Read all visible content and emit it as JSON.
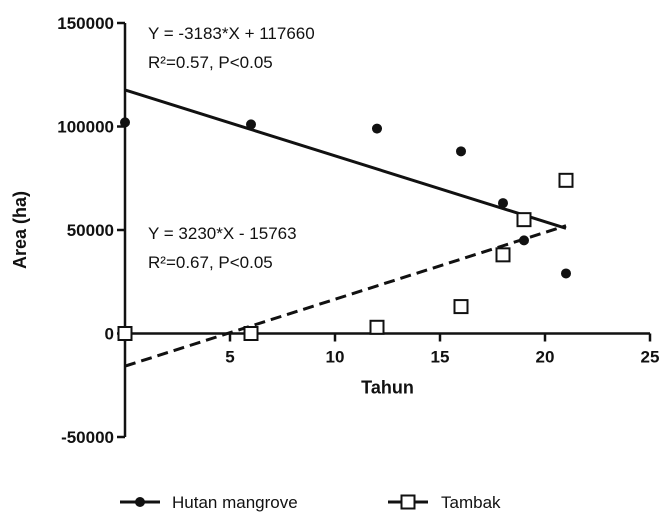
{
  "chart_data": {
    "type": "scatter",
    "xlabel": "Tahun",
    "ylabel": "Area (ha)",
    "xlim": [
      0,
      25
    ],
    "ylim": [
      -50000,
      150000
    ],
    "x_ticks": [
      0,
      5,
      10,
      15,
      20,
      25
    ],
    "x_tick_labels": [
      "0",
      "5",
      "10",
      "15",
      "20",
      "25"
    ],
    "y_ticks": [
      -50000,
      0,
      50000,
      100000,
      150000
    ],
    "y_tick_labels": [
      "-50000",
      "0",
      "50000",
      "100000",
      "150000"
    ],
    "grid": false,
    "legend_position": "bottom",
    "series": [
      {
        "name": "Hutan mangrove",
        "marker": "filled-circle",
        "color": "#111111",
        "x": [
          0,
          6,
          12,
          16,
          18,
          19,
          21
        ],
        "y": [
          102000,
          101000,
          99000,
          88000,
          63000,
          45000,
          29000
        ],
        "fit": {
          "style": "solid",
          "slope": -3183,
          "intercept": 117660,
          "x_range": [
            0,
            21
          ],
          "equation": "Y = -3183*X + 117660",
          "stats": "R²=0.57, P<0.05"
        }
      },
      {
        "name": "Tambak",
        "marker": "open-square",
        "color": "#111111",
        "x": [
          0,
          6,
          12,
          16,
          18,
          19,
          21
        ],
        "y": [
          0,
          0,
          3000,
          13000,
          38000,
          55000,
          74000
        ],
        "fit": {
          "style": "dashed",
          "slope": 3230,
          "intercept": -15763,
          "x_range": [
            0,
            21
          ],
          "equation": "Y = 3230*X - 15763",
          "stats": "R²=0.67, P<0.05"
        }
      }
    ]
  }
}
